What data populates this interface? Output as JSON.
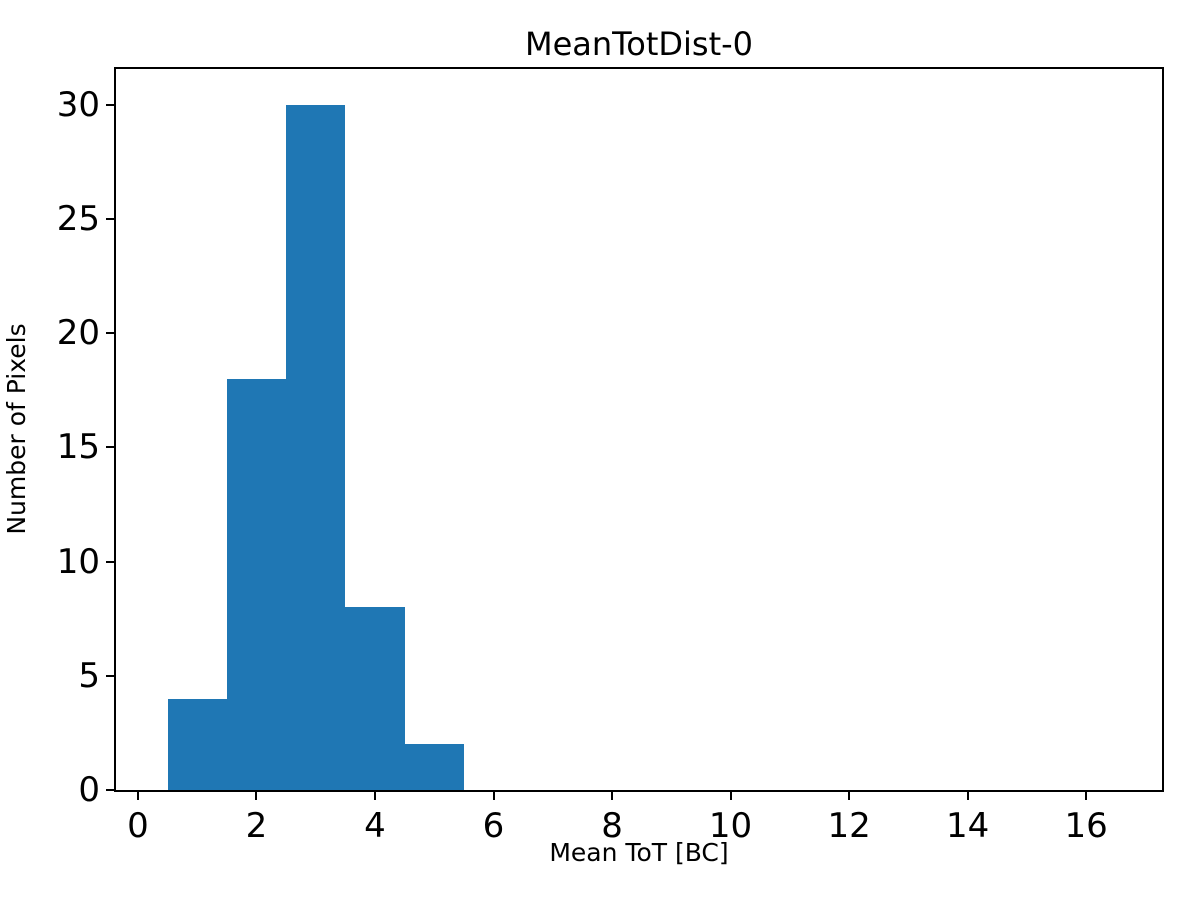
{
  "chart_data": {
    "type": "bar",
    "subtype": "histogram",
    "title": "MeanTotDist-0",
    "xlabel": "Mean ToT [BC]",
    "ylabel": "Number of Pixels",
    "bin_edges": [
      0.5,
      1.5,
      2.5,
      3.5,
      4.5,
      5.5
    ],
    "counts": [
      4,
      18,
      30,
      8,
      2
    ],
    "xticks": [
      0,
      2,
      4,
      6,
      8,
      10,
      12,
      14,
      16
    ],
    "yticks": [
      0,
      5,
      10,
      15,
      20,
      25,
      30
    ],
    "xlim": [
      -0.37,
      17.28
    ],
    "ylim": [
      0,
      31.56
    ],
    "bar_color": "#1f77b4",
    "axis_color": "#000000",
    "background_color": "#ffffff",
    "grid": false,
    "legend_position": "none"
  }
}
